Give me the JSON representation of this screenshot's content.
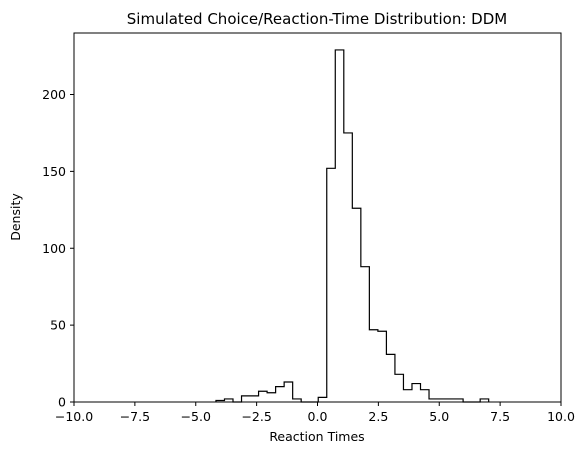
{
  "chart_data": {
    "type": "histogram",
    "title": "Simulated Choice/Reaction-Time Distribution: DDM",
    "xlabel": "Reaction Times",
    "ylabel": "Density",
    "xlim": [
      -10.0,
      10.0
    ],
    "ylim": [
      0,
      240
    ],
    "x_ticks": [
      -10.0,
      -7.5,
      -5.0,
      -2.5,
      0.0,
      2.5,
      5.0,
      7.5,
      10.0
    ],
    "x_tick_labels": [
      "−10.0",
      "−7.5",
      "−5.0",
      "−2.5",
      "0.0",
      "2.5",
      "5.0",
      "7.5",
      "10.0"
    ],
    "y_ticks": [
      0,
      50,
      100,
      150,
      200
    ],
    "y_tick_labels": [
      "0",
      "50",
      "100",
      "150",
      "200"
    ],
    "grid": false,
    "legend": "none",
    "line_color": "#000000",
    "bins": [
      {
        "x0": -4.17,
        "x1": -3.82,
        "y": 1
      },
      {
        "x0": -3.82,
        "x1": -3.47,
        "y": 2
      },
      {
        "x0": -3.47,
        "x1": -3.12,
        "y": 0
      },
      {
        "x0": -3.12,
        "x1": -2.77,
        "y": 4
      },
      {
        "x0": -2.77,
        "x1": -2.42,
        "y": 4
      },
      {
        "x0": -2.42,
        "x1": -2.07,
        "y": 7
      },
      {
        "x0": -2.07,
        "x1": -1.72,
        "y": 6
      },
      {
        "x0": -1.72,
        "x1": -1.37,
        "y": 10
      },
      {
        "x0": -1.37,
        "x1": -1.02,
        "y": 13
      },
      {
        "x0": -1.02,
        "x1": -0.67,
        "y": 2
      },
      {
        "x0": -0.67,
        "x1": -0.32,
        "y": 0
      },
      {
        "x0": -0.32,
        "x1": 0.03,
        "y": 0
      },
      {
        "x0": 0.03,
        "x1": 0.38,
        "y": 3
      },
      {
        "x0": 0.38,
        "x1": 0.73,
        "y": 152
      },
      {
        "x0": 0.73,
        "x1": 1.08,
        "y": 229
      },
      {
        "x0": 1.08,
        "x1": 1.43,
        "y": 175
      },
      {
        "x0": 1.43,
        "x1": 1.78,
        "y": 126
      },
      {
        "x0": 1.78,
        "x1": 2.13,
        "y": 88
      },
      {
        "x0": 2.13,
        "x1": 2.48,
        "y": 47
      },
      {
        "x0": 2.48,
        "x1": 2.83,
        "y": 46
      },
      {
        "x0": 2.83,
        "x1": 3.18,
        "y": 31
      },
      {
        "x0": 3.18,
        "x1": 3.53,
        "y": 18
      },
      {
        "x0": 3.53,
        "x1": 3.88,
        "y": 8
      },
      {
        "x0": 3.88,
        "x1": 4.23,
        "y": 12
      },
      {
        "x0": 4.23,
        "x1": 4.58,
        "y": 8
      },
      {
        "x0": 4.58,
        "x1": 4.93,
        "y": 2
      },
      {
        "x0": 4.93,
        "x1": 5.28,
        "y": 2
      },
      {
        "x0": 5.28,
        "x1": 5.63,
        "y": 2
      },
      {
        "x0": 5.63,
        "x1": 5.98,
        "y": 2
      },
      {
        "x0": 5.98,
        "x1": 6.33,
        "y": 0
      },
      {
        "x0": 6.33,
        "x1": 6.68,
        "y": 0
      },
      {
        "x0": 6.68,
        "x1": 7.03,
        "y": 2
      }
    ]
  }
}
